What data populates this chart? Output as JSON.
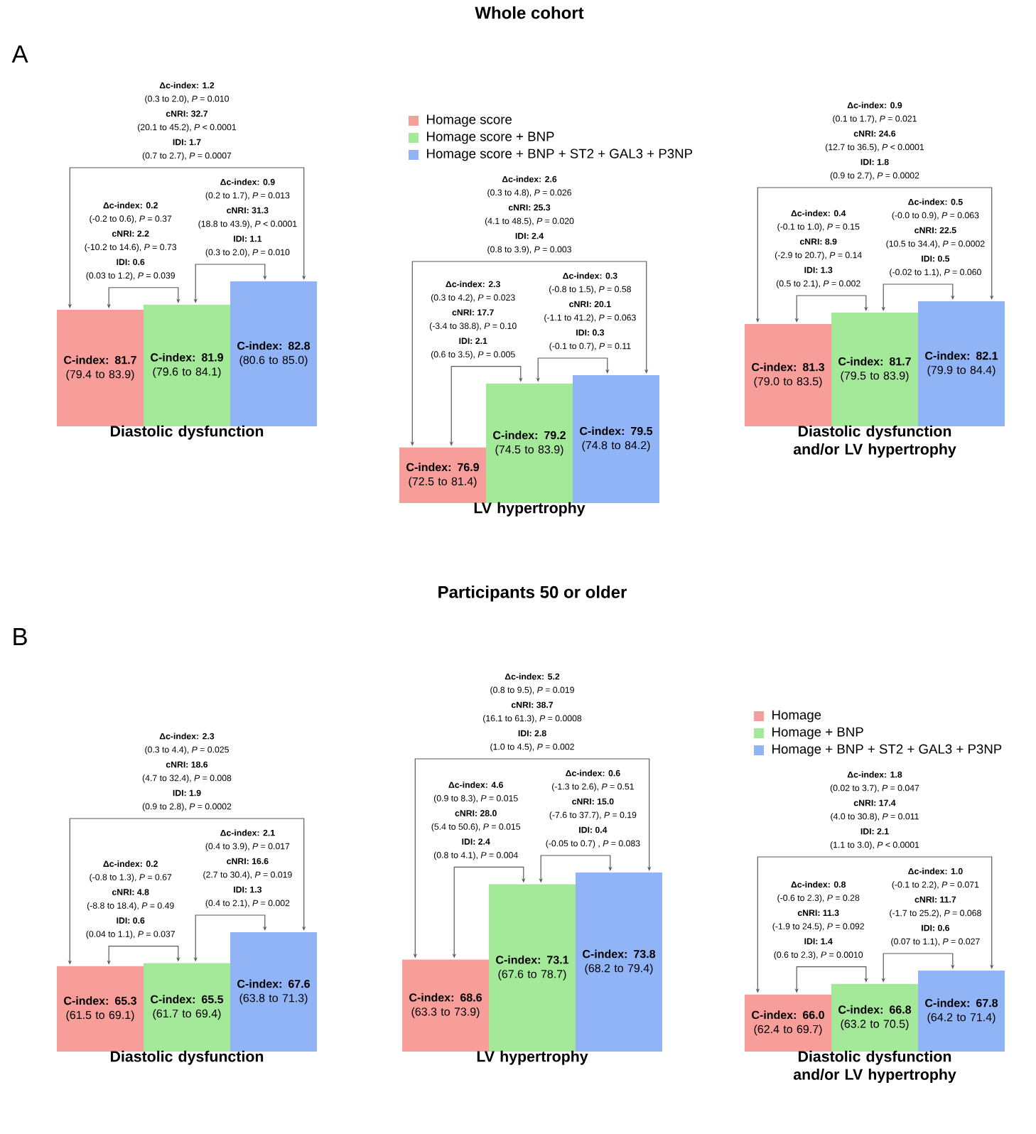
{
  "chart_data": [
    {
      "type": "bar",
      "xlabel": "Diastolic dysfunction",
      "categories": [
        null,
        null,
        null
      ],
      "ylim": [
        77.2,
        82.8
      ],
      "tick_labels": false,
      "values": [
        81.7,
        81.9,
        82.8
      ],
      "colors": [
        "#f79e9b",
        "#a4e899",
        "#90b4f5"
      ],
      "value_labels": [
        "**C-index: 81.7** (79.4 to 83.9)",
        "**C-index: 81.9** (79.6 to 84.1)",
        "**C-index: 82.8** (80.6 to 85.0)"
      ],
      "annotations": [
        "Δc-index: 0.2",
        "(-0.2 to 0.6), *P* = 0.37",
        "cNRI: 2.2",
        "(-10.2 to 14.6), *P* = 0.73",
        "IDI: 0.6",
        "(0.03 to 1.2), *P* = 0.039",
        "Δc-index: 0.9",
        "(0.2 to 1.7), *P* = 0.013",
        "cNRI: 31.3",
        "(18.8 to 43.9), *P* < 0.0001",
        "IDI: 1.1",
        "(0.3 to 2.0), *P* = 0.010",
        "Δc-index: 1.2",
        "(0.3 to 2.0), *P* = 0.010",
        "cNRI: 32.7",
        "(20.1 to 45.2), *P* < 0.0001",
        "IDI: 1.7",
        "(0.7 to 2.7), *P* = 0.0007",
        "A"
      ]
    },
    {
      "type": "bar",
      "title": "Whole cohort",
      "xlabel": "LV hypertrophy",
      "categories": [
        null,
        null,
        null
      ],
      "ylim": [
        74.9,
        79.5
      ],
      "tick_labels": false,
      "values": [
        76.9,
        79.2,
        79.5
      ],
      "colors": [
        "#f79e9b",
        "#a4e899",
        "#90b4f5"
      ],
      "value_labels": [
        "**C-index: 76.9** (72.5 to 81.4)",
        "**C-index: 79.2** (74.5 to 83.9)",
        "**C-index: 79.5** (74.8 to 84.2)"
      ],
      "annotations": [
        "Δc-index: 2.3",
        "(0.3 to 4.2), *P* = 0.023",
        "cNRI: 17.7",
        "(-3.4 to 38.8), *P* = 0.10",
        "IDI: 2.1",
        "(0.6 to 3.5), *P* = 0.005",
        "Δc-index: 0.3",
        "(-0.8 to 1.5), *P* = 0.58",
        "cNRI: 20.1",
        "(-1.1 to 41.2), *P* = 0.063",
        "IDI: 0.3",
        "(-0.1 to 0.7), *P* = 0.11",
        "Δc-index: 2.6",
        "(0.3 to 4.8), *P* = 0.026",
        "cNRI: 25.3",
        "(4.1 to 48.5), *P* = 0.020",
        "IDI: 2.4",
        "(0.8 to 3.9), *P* = 0.003",
        "Homage score",
        "Homage score + BNP",
        "Homage score + BNP + ST2 + GAL3 + P3NP"
      ]
    },
    {
      "type": "bar",
      "xlabel": "Diastolic dysfunction and/or LV hypertrophy",
      "categories": [
        null,
        null,
        null
      ],
      "ylim": [
        77.7,
        82.1
      ],
      "tick_labels": false,
      "values": [
        81.3,
        81.7,
        82.1
      ],
      "colors": [
        "#f79e9b",
        "#a4e899",
        "#90b4f5"
      ],
      "value_labels": [
        "**C-index: 81.3** (79.0 to 83.5)",
        "**C-index: 81.7** (79.5 to 83.9)",
        "**C-index: 82.1** (79.9 to 84.4)"
      ],
      "annotations": [
        "Δc-index: 0.4",
        "(-0.1 to 1.0), *P* = 0.15",
        "cNRI: 8.9",
        "(-2.9 to 20.7), *P* = 0.14",
        "IDI: 1.3",
        "(0.5 to 2.1), *P* = 0.002",
        "Δc-index: 0.5",
        "(-0.0 to 0.9), *P* = 0.063",
        "cNRI: 22.5",
        "(10.5 to 34.4), *P* = 0.0002",
        "IDI: 0.5",
        "(-0.02 to 1.1), *P* = 0.060",
        "Δc-index: 0.9",
        "(0.1 to 1.7), *P* = 0.021",
        "cNRI: 24.6",
        "(12.7 to 36.5), *P* < 0.0001",
        "IDI: 1.8",
        "(0.9 to 2.7), *P* = 0.0002"
      ]
    },
    {
      "type": "bar",
      "xlabel": "Diastolic dysfunction",
      "categories": [
        null,
        null,
        null
      ],
      "ylim": [
        59.5,
        67.6
      ],
      "tick_labels": false,
      "values": [
        65.3,
        65.5,
        67.6
      ],
      "colors": [
        "#f79e9b",
        "#a4e899",
        "#90b4f5"
      ],
      "value_labels": [
        "**C-index: 65.3** (61.5 to 69.1)",
        "**C-index: 65.5** (61.7 to 69.4)",
        "**C-index: 67.6** (63.8 to 71.3)"
      ],
      "annotations": [
        "Δc-index: 0.2",
        "(-0.8 to 1.3), *P* = 0.67",
        "cNRI: 4.8",
        "(-8.8 to 18.4), *P* = 0.49",
        "IDI: 0.6",
        "(0.04 to 1.1), *P* = 0.037",
        "Δc-index: 2.1",
        "(0.4 to 3.9), *P* = 0.017",
        "cNRI: 16.6",
        "(2.7 to 30.4), *P* = 0.019",
        "IDI: 1.3",
        "(0.4 to 2.1), *P* = 0.002",
        "Δc-index: 2.3",
        "(0.3 to 4.4), *P* = 0.025",
        "cNRI: 18.6",
        "(4.7 to 32.4), *P* = 0.008",
        "IDI: 1.9",
        "(0.9 to 2.8), *P* = 0.0002",
        "B"
      ]
    },
    {
      "type": "bar",
      "title": "Participants 50 or older",
      "xlabel": "LV hypertrophy",
      "categories": [
        null,
        null,
        null
      ],
      "ylim": [
        63.1,
        73.8
      ],
      "tick_labels": false,
      "values": [
        68.6,
        73.1,
        73.8
      ],
      "colors": [
        "#f79e9b",
        "#a4e899",
        "#90b4f5"
      ],
      "value_labels": [
        "**C-index: 68.6** (63.3 to 73.9)",
        "**C-index: 73.1** (67.6 to 78.7)",
        "**C-index: 73.8** (68.2 to 79.4)"
      ],
      "annotations": [
        "Δc-index: 4.6",
        "(0.9 to 8.3), *P* = 0.015",
        "cNRI: 28.0",
        "(5.4 to 50.6), *P* = 0.015",
        "IDI: 2.4",
        "(0.8 to 4.1), *P* = 0.004",
        "Δc-index: 0.6",
        "(-1.3 to 2.6), *P* = 0.51",
        "cNRI: 15.0",
        "(-7.6 to 37.7), *P* = 0.19",
        "IDI: 0.4",
        "(-0.05 to 0.7) , *P* = 0.083",
        "Δc-index: 5.2",
        "(0.8 to 9.5), *P* = 0.019",
        "cNRI: 38.7",
        "(16.1 to 61.3), *P* = 0.0008",
        "IDI: 2.8",
        "(1.0 to 4.5), *P* = 0.002"
      ]
    },
    {
      "type": "bar",
      "xlabel": "Diastolic dysfunction and/or LV hypertrophy",
      "categories": [
        null,
        null,
        null
      ],
      "ylim": [
        61.7,
        67.8
      ],
      "tick_labels": false,
      "values": [
        66.0,
        66.8,
        67.8
      ],
      "colors": [
        "#f79e9b",
        "#a4e899",
        "#90b4f5"
      ],
      "value_labels": [
        "**C-index: 66.0** (62.4 to 69.7)",
        "**C-index: 66.8** (63.2 to 70.5)",
        "**C-index: 67.8** (64.2 to 71.4)"
      ],
      "annotations": [
        "Δc-index: 0.8",
        "(-0.6 to 2.3), *P* = 0.28",
        "cNRI: 11.3",
        "(-1.9 to 24.5), *P* = 0.092",
        "IDI: 1.4",
        "(0.6 to 2.3), *P* = 0.0010",
        "Δc-index: 1.0",
        "(-0.1 to 2.2), *P* = 0.071",
        "cNRI: 11.7",
        "(-1.7 to 25.2), *P* = 0.068",
        "IDI: 0.6",
        "(0.07 to 1.1), *P* = 0.027",
        "Δc-index: 1.8",
        "(0.02 to 3.7), *P* = 0.047",
        "cNRI: 17.4",
        "(4.0 to 30.8), *P* = 0.011",
        "IDI: 2.1",
        "(1.1 to 3.0), *P* < 0.0001",
        "Homage",
        "Homage + BNP",
        "Homage + BNP + ST2 + GAL3 + P3NP"
      ]
    }
  ]
}
